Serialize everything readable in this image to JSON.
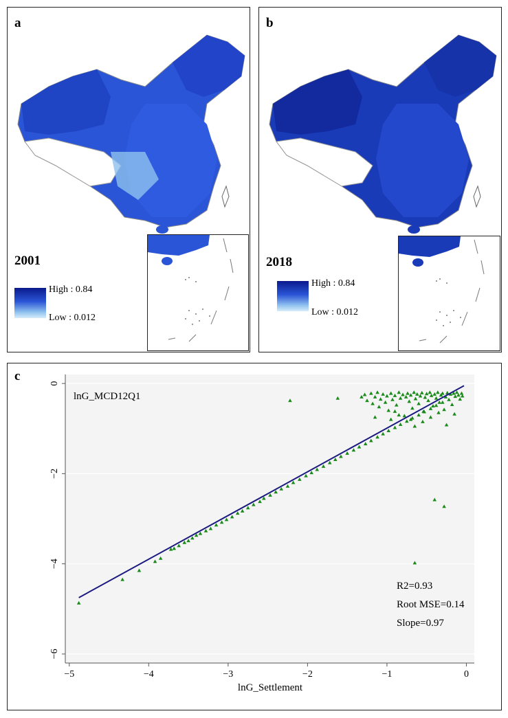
{
  "panels": [
    {
      "letter": "a",
      "year": "2001",
      "legend_high": "High : 0.84",
      "legend_low": "Low : 0.012",
      "colors": {
        "high": "#0a1a8c",
        "mid": "#2a55d6",
        "low": "#d6ecfa"
      }
    },
    {
      "letter": "b",
      "year": "2018",
      "legend_high": "High : 0.84",
      "legend_low": "Low : 0.012",
      "colors": {
        "high": "#0a1a8c",
        "mid": "#2a55d6",
        "low": "#d6ecfa"
      }
    }
  ],
  "scatter": {
    "letter": "c"
  },
  "chart_data": {
    "type": "scatter",
    "title": "",
    "series_label": "lnG_MCD12Q1",
    "xlabel": "lnG_Settlement",
    "ylabel": "",
    "xlim": [
      -5.05,
      0.1
    ],
    "ylim": [
      -6.2,
      0.2
    ],
    "xticks": [
      -5,
      -4,
      -3,
      -2,
      -1,
      0
    ],
    "yticks": [
      0,
      -2,
      -4,
      -6
    ],
    "grid": true,
    "marker": "triangle",
    "marker_color": "#1a8a1a",
    "line_color": "#1a1a80",
    "fit_line": {
      "x": [
        -4.88,
        -0.03
      ],
      "y": [
        -4.75,
        -0.05
      ]
    },
    "stats": [
      "R2=0.93",
      "Root MSE=0.14",
      "Slope=0.97"
    ],
    "points": [
      [
        -4.88,
        -4.87
      ],
      [
        -4.33,
        -4.35
      ],
      [
        -4.12,
        -4.15
      ],
      [
        -3.92,
        -3.95
      ],
      [
        -3.85,
        -3.88
      ],
      [
        -3.72,
        -3.68
      ],
      [
        -3.68,
        -3.66
      ],
      [
        -3.62,
        -3.6
      ],
      [
        -3.55,
        -3.53
      ],
      [
        -3.5,
        -3.49
      ],
      [
        -3.45,
        -3.43
      ],
      [
        -3.4,
        -3.37
      ],
      [
        -3.35,
        -3.33
      ],
      [
        -3.28,
        -3.27
      ],
      [
        -3.22,
        -3.22
      ],
      [
        -3.15,
        -3.14
      ],
      [
        -3.08,
        -3.08
      ],
      [
        -3.02,
        -3.02
      ],
      [
        -2.95,
        -2.96
      ],
      [
        -2.88,
        -2.88
      ],
      [
        -2.82,
        -2.83
      ],
      [
        -2.75,
        -2.76
      ],
      [
        -2.68,
        -2.69
      ],
      [
        -2.6,
        -2.62
      ],
      [
        -2.55,
        -2.55
      ],
      [
        -2.47,
        -2.48
      ],
      [
        -2.4,
        -2.41
      ],
      [
        -2.33,
        -2.34
      ],
      [
        -2.25,
        -2.28
      ],
      [
        -2.18,
        -2.2
      ],
      [
        -2.1,
        -2.13
      ],
      [
        -2.02,
        -2.05
      ],
      [
        -1.95,
        -1.98
      ],
      [
        -1.88,
        -1.91
      ],
      [
        -1.8,
        -1.84
      ],
      [
        -1.72,
        -1.76
      ],
      [
        -1.65,
        -1.69
      ],
      [
        -1.58,
        -1.62
      ],
      [
        -1.5,
        -1.55
      ],
      [
        -1.42,
        -1.48
      ],
      [
        -1.35,
        -1.41
      ],
      [
        -1.27,
        -1.34
      ],
      [
        -1.2,
        -1.27
      ],
      [
        -1.12,
        -1.19
      ],
      [
        -1.05,
        -1.12
      ],
      [
        -0.98,
        -1.05
      ],
      [
        -0.9,
        -0.98
      ],
      [
        -0.83,
        -0.91
      ],
      [
        -0.75,
        -0.84
      ],
      [
        -0.68,
        -0.77
      ],
      [
        -0.6,
        -0.7
      ],
      [
        -0.53,
        -0.63
      ],
      [
        -0.45,
        -0.56
      ],
      [
        -0.38,
        -0.49
      ],
      [
        -0.3,
        -0.42
      ],
      [
        -2.22,
        -0.38
      ],
      [
        -1.62,
        -0.33
      ],
      [
        -1.32,
        -0.3
      ],
      [
        -1.28,
        -0.25
      ],
      [
        -1.25,
        -0.38
      ],
      [
        -1.2,
        -0.22
      ],
      [
        -1.18,
        -0.45
      ],
      [
        -1.15,
        -0.3
      ],
      [
        -1.12,
        -0.2
      ],
      [
        -1.1,
        -0.52
      ],
      [
        -1.08,
        -0.35
      ],
      [
        -1.05,
        -0.24
      ],
      [
        -1.02,
        -0.42
      ],
      [
        -1.0,
        -0.28
      ],
      [
        -0.98,
        -0.6
      ],
      [
        -0.95,
        -0.22
      ],
      [
        -0.93,
        -0.36
      ],
      [
        -0.9,
        -0.27
      ],
      [
        -0.88,
        -0.48
      ],
      [
        -0.85,
        -0.2
      ],
      [
        -0.83,
        -0.33
      ],
      [
        -0.8,
        -0.25
      ],
      [
        -0.78,
        -0.72
      ],
      [
        -0.76,
        -0.3
      ],
      [
        -0.74,
        -0.22
      ],
      [
        -0.72,
        -0.4
      ],
      [
        -0.7,
        -0.26
      ],
      [
        -0.68,
        -0.55
      ],
      [
        -0.66,
        -0.2
      ],
      [
        -0.64,
        -0.34
      ],
      [
        -0.62,
        -0.24
      ],
      [
        -0.6,
        -0.45
      ],
      [
        -0.58,
        -0.28
      ],
      [
        -0.56,
        -0.21
      ],
      [
        -0.54,
        -0.62
      ],
      [
        -0.52,
        -0.31
      ],
      [
        -0.5,
        -0.23
      ],
      [
        -0.48,
        -0.38
      ],
      [
        -0.46,
        -0.2
      ],
      [
        -0.44,
        -0.27
      ],
      [
        -0.42,
        -0.5
      ],
      [
        -0.4,
        -0.24
      ],
      [
        -0.38,
        -0.33
      ],
      [
        -0.36,
        -0.2
      ],
      [
        -0.34,
        -0.42
      ],
      [
        -0.32,
        -0.26
      ],
      [
        -0.3,
        -0.22
      ],
      [
        -0.28,
        -0.58
      ],
      [
        -0.26,
        -0.3
      ],
      [
        -0.24,
        -0.21
      ],
      [
        -0.22,
        -0.36
      ],
      [
        -0.2,
        -0.24
      ],
      [
        -0.18,
        -0.47
      ],
      [
        -0.16,
        -0.22
      ],
      [
        -0.14,
        -0.29
      ],
      [
        -0.12,
        -0.2
      ],
      [
        -0.1,
        -0.26
      ],
      [
        -0.08,
        -0.35
      ],
      [
        -0.06,
        -0.22
      ],
      [
        -0.05,
        -0.28
      ],
      [
        -0.9,
        -0.62
      ],
      [
        -0.85,
        -0.7
      ],
      [
        -0.7,
        -0.8
      ],
      [
        -0.55,
        -0.85
      ],
      [
        -0.45,
        -0.75
      ],
      [
        -0.35,
        -0.65
      ],
      [
        -0.25,
        -0.92
      ],
      [
        -0.15,
        -0.68
      ],
      [
        -0.65,
        -0.95
      ],
      [
        -0.95,
        -0.8
      ],
      [
        -1.15,
        -0.75
      ],
      [
        -0.4,
        -2.58
      ],
      [
        -0.28,
        -2.73
      ],
      [
        -0.65,
        -3.98
      ]
    ]
  }
}
